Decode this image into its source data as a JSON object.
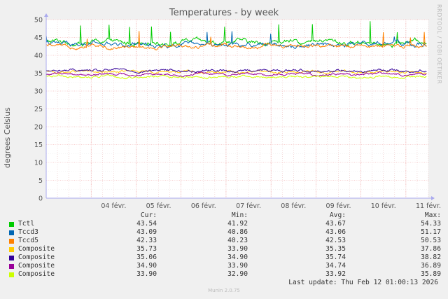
{
  "chart_data": {
    "type": "line",
    "title": "Temperatures - by week",
    "ylabel": "degrees Celsius",
    "ylim": [
      0,
      50
    ],
    "yticks": [
      "0",
      "5",
      "10",
      "15",
      "20",
      "25",
      "30",
      "35",
      "40",
      "45",
      "50"
    ],
    "xticks": [
      "04 févr.",
      "05 févr.",
      "06 févr.",
      "07 févr.",
      "08 févr.",
      "09 févr.",
      "10 févr.",
      "11 févr."
    ],
    "xrange_days": [
      0,
      8.5
    ],
    "grid": true,
    "series": [
      {
        "name": "Tctl",
        "color": "#00cc00",
        "cur": "43.54",
        "min": "41.92",
        "avg": "43.67",
        "max": "54.33",
        "base": 43.67,
        "spread": 0.9
      },
      {
        "name": "Tccd3",
        "color": "#0066b3",
        "cur": "43.09",
        "min": "40.86",
        "avg": "43.06",
        "max": "51.17",
        "base": 43.06,
        "spread": 0.8
      },
      {
        "name": "Tccd5",
        "color": "#ff8000",
        "cur": "42.33",
        "min": "40.23",
        "avg": "42.53",
        "max": "50.53",
        "base": 42.53,
        "spread": 0.7
      },
      {
        "name": "Composite",
        "color": "#ffcc00",
        "cur": "35.73",
        "min": "33.90",
        "avg": "35.35",
        "max": "37.86",
        "base": 35.35,
        "spread": 0.45
      },
      {
        "name": "Composite",
        "color": "#330099",
        "cur": "35.06",
        "min": "34.90",
        "avg": "35.74",
        "max": "38.82",
        "base": 35.74,
        "spread": 0.5
      },
      {
        "name": "Composite",
        "color": "#990099",
        "cur": "34.90",
        "min": "33.90",
        "avg": "34.74",
        "max": "36.89",
        "base": 34.74,
        "spread": 0.45
      },
      {
        "name": "Composite",
        "color": "#ccff00",
        "cur": "33.90",
        "min": "32.90",
        "avg": "33.92",
        "max": "35.89",
        "base": 33.92,
        "spread": 0.45
      }
    ]
  },
  "legend_headers": {
    "cur": "Cur:",
    "min": "Min:",
    "avg": "Avg:",
    "max": "Max:"
  },
  "last_update": "Last update: Thu Feb 12 01:00:13 2026",
  "footer": "Munin 2.0.75",
  "watermark": "RRDTOOL / TOBI OETIKER"
}
